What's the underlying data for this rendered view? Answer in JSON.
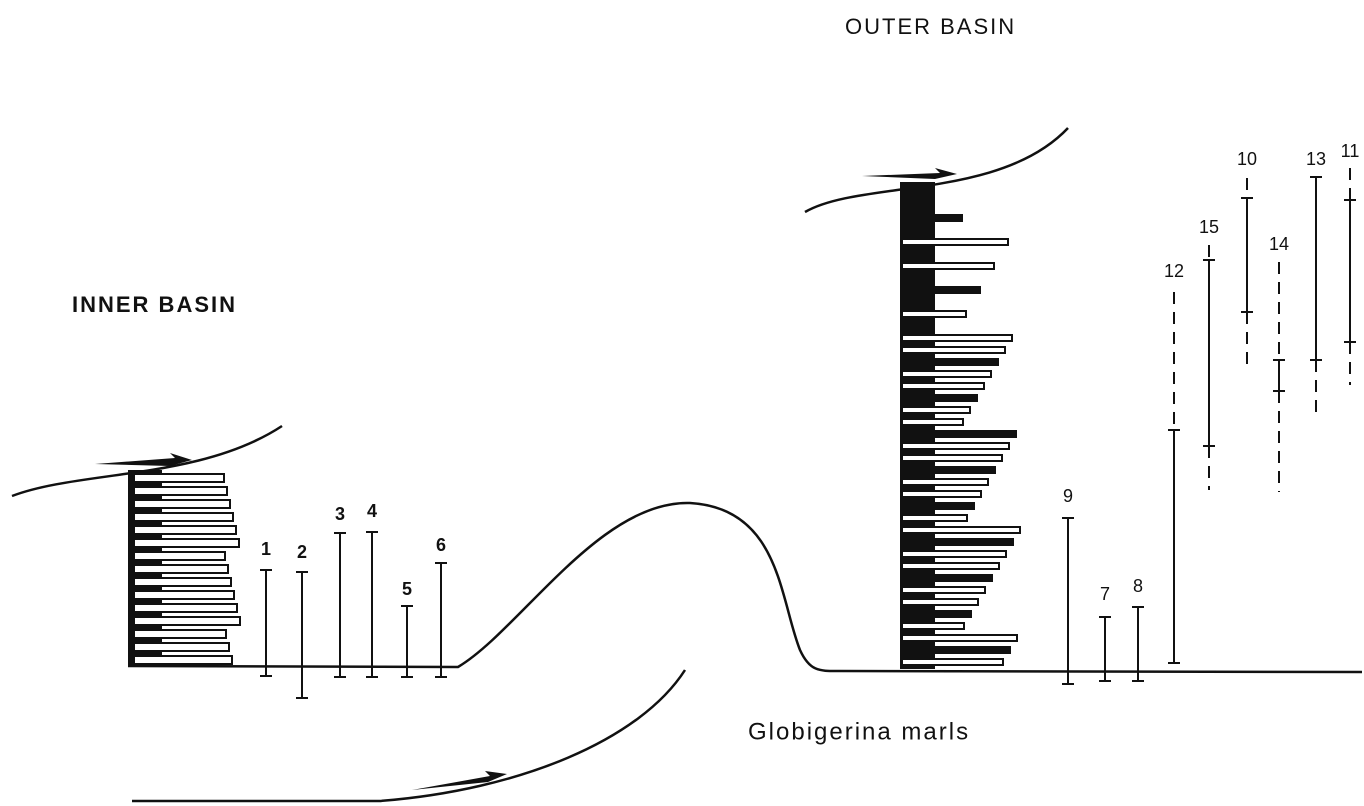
{
  "headings": {
    "inner": "INNER BASIN",
    "outer": "OUTER BASIN"
  },
  "formation": "Globigerina marls",
  "sections": [
    "1",
    "2",
    "3",
    "4",
    "5",
    "6",
    "9",
    "7",
    "8",
    "12",
    "15",
    "10",
    "14",
    "13",
    "11"
  ]
}
